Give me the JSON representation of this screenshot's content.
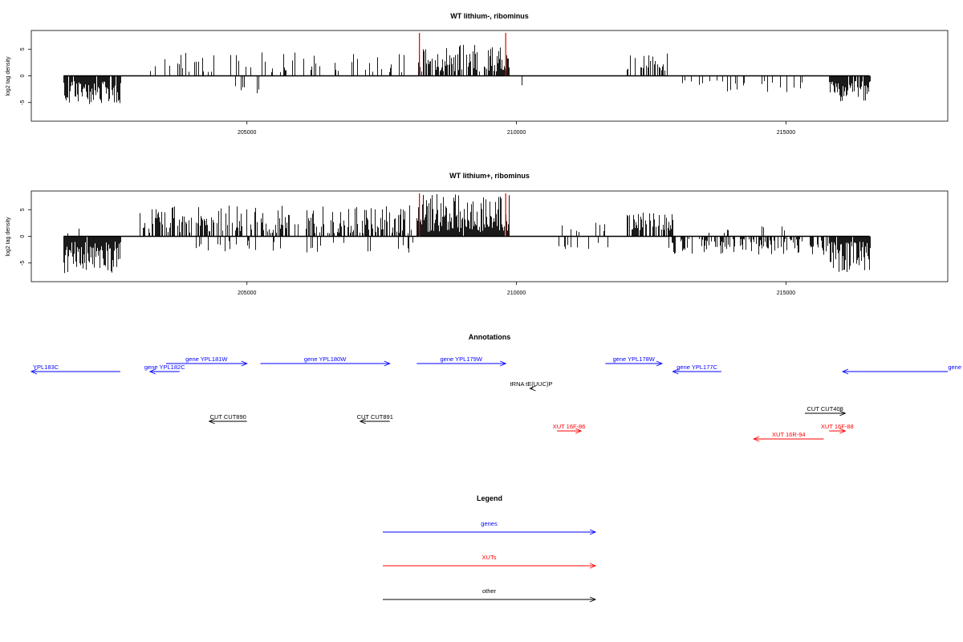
{
  "colors": {
    "gene": "#0000ff",
    "xut": "#ff0000",
    "other": "#000000",
    "highlight": "#dd0000",
    "bar": "#000000"
  },
  "chart_data": [
    {
      "type": "bar",
      "title": "WT lithium-, ribominus",
      "ylabel": "log2 tag density",
      "yticks": [
        -5,
        0,
        5
      ],
      "ylim": [
        -8.5,
        8.5
      ],
      "xlim": [
        201000,
        218000
      ],
      "xticks": [
        205000,
        210000,
        215000
      ],
      "highlight_x": [
        208200,
        209800
      ],
      "segments": [
        {
          "from": 201600,
          "to": 202650,
          "density": 0.85,
          "sign": -1,
          "min": 1,
          "max": 5.5
        },
        {
          "from": 203200,
          "to": 208100,
          "density": 0.16,
          "sign": 1,
          "min": 0.6,
          "max": 4.4
        },
        {
          "from": 204500,
          "to": 205500,
          "density": 0.04,
          "sign": -1,
          "min": 1,
          "max": 3.5
        },
        {
          "from": 208150,
          "to": 209850,
          "density": 0.75,
          "sign": 1,
          "min": 0.8,
          "max": 6
        },
        {
          "from": 209850,
          "to": 210350,
          "density": 0.08,
          "sign": -1,
          "min": 1,
          "max": 4
        },
        {
          "from": 212050,
          "to": 212800,
          "density": 0.4,
          "sign": 1,
          "min": 1,
          "max": 4.5
        },
        {
          "from": 212800,
          "to": 215300,
          "density": 0.12,
          "sign": -1,
          "min": 0.8,
          "max": 3.2
        },
        {
          "from": 215000,
          "to": 215800,
          "density": 0.03,
          "sign": 1,
          "min": 1,
          "max": 3
        },
        {
          "from": 215800,
          "to": 216550,
          "density": 0.85,
          "sign": -1,
          "min": 1,
          "max": 4.8
        }
      ]
    },
    {
      "type": "bar",
      "title": "WT lithium+, ribominus",
      "ylabel": "log2 tag density",
      "yticks": [
        -5,
        0,
        5
      ],
      "ylim": [
        -8.5,
        8.5
      ],
      "xlim": [
        201000,
        218000
      ],
      "xticks": [
        205000,
        210000,
        215000
      ],
      "highlight_x": [
        208200,
        209800
      ],
      "segments": [
        {
          "from": 201600,
          "to": 202650,
          "density": 0.95,
          "sign": -1,
          "min": 1,
          "max": 7
        },
        {
          "from": 201600,
          "to": 202000,
          "density": 0.1,
          "sign": 1,
          "min": 0.5,
          "max": 2.8
        },
        {
          "from": 203000,
          "to": 208100,
          "density": 0.5,
          "sign": 1,
          "min": 0.6,
          "max": 5.8
        },
        {
          "from": 204000,
          "to": 208100,
          "density": 0.1,
          "sign": -1,
          "min": 0.8,
          "max": 3.2
        },
        {
          "from": 208150,
          "to": 209850,
          "density": 0.95,
          "sign": 1,
          "min": 0.8,
          "max": 8
        },
        {
          "from": 209850,
          "to": 210300,
          "density": 0.1,
          "sign": -1,
          "min": 1,
          "max": 8
        },
        {
          "from": 210700,
          "to": 211700,
          "density": 0.15,
          "sign": 1,
          "min": 0.8,
          "max": 2.6
        },
        {
          "from": 210700,
          "to": 211800,
          "density": 0.12,
          "sign": -1,
          "min": 0.8,
          "max": 3
        },
        {
          "from": 212050,
          "to": 212900,
          "density": 0.7,
          "sign": 1,
          "min": 1,
          "max": 4.5
        },
        {
          "from": 212800,
          "to": 215800,
          "density": 0.45,
          "sign": -1,
          "min": 0.5,
          "max": 3.6
        },
        {
          "from": 213500,
          "to": 215500,
          "density": 0.06,
          "sign": 1,
          "min": 0.5,
          "max": 2
        },
        {
          "from": 215800,
          "to": 216550,
          "density": 0.95,
          "sign": -1,
          "min": 1,
          "max": 7
        }
      ]
    }
  ],
  "annotations": {
    "title": "Annotations",
    "xlim": [
      201000,
      218000
    ],
    "features": [
      {
        "label": "YPL183C",
        "kind": "gene",
        "start": 201000,
        "end": 202650,
        "dir": "left",
        "row": 1,
        "align": "start"
      },
      {
        "label": "gene YPL182C",
        "kind": "gene",
        "start": 203200,
        "end": 203750,
        "dir": "left",
        "row": 1,
        "align": "middle"
      },
      {
        "label": "gene YPL181W",
        "kind": "gene",
        "start": 203500,
        "end": 205000,
        "dir": "right",
        "row": 0,
        "align": "middle"
      },
      {
        "label": "gene YPL180W",
        "kind": "gene",
        "start": 205250,
        "end": 207650,
        "dir": "right",
        "row": 0,
        "align": "middle"
      },
      {
        "label": "gene YPL179W",
        "kind": "gene",
        "start": 208150,
        "end": 209800,
        "dir": "right",
        "row": 0,
        "align": "middle"
      },
      {
        "label": "gene YPL178W",
        "kind": "gene",
        "start": 211650,
        "end": 212700,
        "dir": "right",
        "row": 0,
        "align": "middle"
      },
      {
        "label": "gene YPL177C",
        "kind": "gene",
        "start": 212900,
        "end": 213800,
        "dir": "left",
        "row": 1,
        "align": "middle"
      },
      {
        "label": "gene",
        "kind": "gene",
        "start": 216050,
        "end": 218000,
        "dir": "left",
        "row": 1,
        "align": "end"
      },
      {
        "label": "tRNA tE(UUC)P",
        "kind": "other",
        "start": 210250,
        "end": 210300,
        "dir": "left",
        "row": 2,
        "align": "middle"
      },
      {
        "label": "CUT CUT890",
        "kind": "other",
        "start": 204300,
        "end": 205000,
        "dir": "left",
        "row": 3,
        "align": "middle"
      },
      {
        "label": "CUT CUT891",
        "kind": "other",
        "start": 207100,
        "end": 207650,
        "dir": "left",
        "row": 3,
        "align": "middle"
      },
      {
        "label": "CUT CUT408",
        "kind": "other",
        "start": 215350,
        "end": 216100,
        "dir": "right",
        "row": 4,
        "align": "middle"
      },
      {
        "label": "XUT 16F-86",
        "kind": "xut",
        "start": 210750,
        "end": 211200,
        "dir": "right",
        "row": 5,
        "align": "middle"
      },
      {
        "label": "XUT 16F-88",
        "kind": "xut",
        "start": 215800,
        "end": 216100,
        "dir": "right",
        "row": 5,
        "align": "middle"
      },
      {
        "label": "XUT 16R-94",
        "kind": "xut",
        "start": 214400,
        "end": 215700,
        "dir": "left",
        "row": 6,
        "align": "middle"
      }
    ]
  },
  "legend": {
    "title": "Legend",
    "items": [
      {
        "label": "genes",
        "kind": "gene"
      },
      {
        "label": "XUTs",
        "kind": "xut"
      },
      {
        "label": "other",
        "kind": "other"
      }
    ]
  }
}
